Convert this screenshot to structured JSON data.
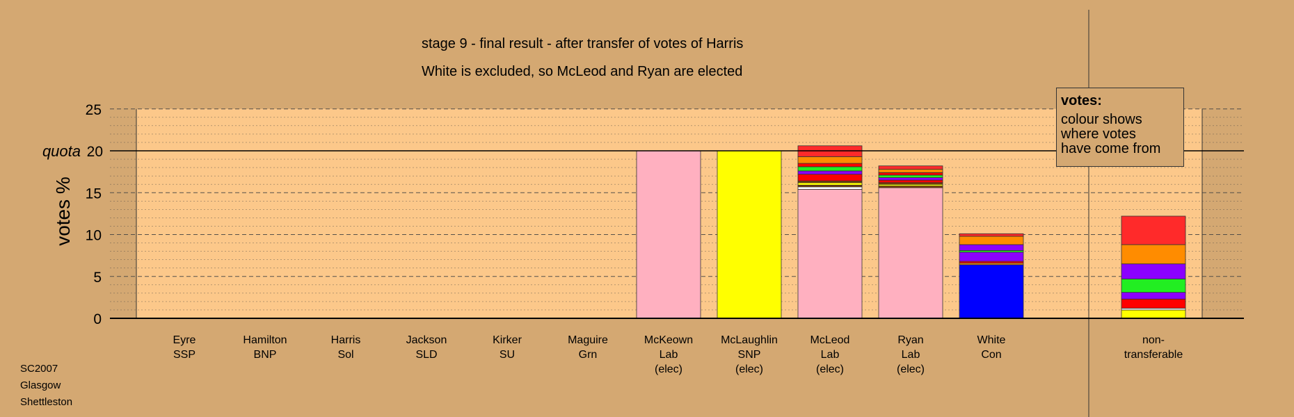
{
  "title_line1": "stage 9 - final result - after transfer of votes of Harris",
  "title_line2": "White is excluded, so McLeod and Ryan are elected",
  "legend": {
    "heading": "votes:",
    "body": "colour shows\nwhere votes\nhave come from"
  },
  "source": [
    "SC2007",
    "Glasgow",
    "Shettleston"
  ],
  "colors": {
    "background": "#d4a872",
    "plot_area": "#fcc88a",
    "SSP": "#ff0000",
    "BNP": "#7f3f00",
    "Sol": "#ff2a2a",
    "SLD": "#ff8c00",
    "SU": "#8b00ff",
    "Grn": "#22ee22",
    "Lab": "#ffb0c0",
    "SNP": "#ffff00",
    "Con": "#0000ff",
    "other": "#ffffff"
  },
  "chart_data": {
    "type": "bar",
    "stacked": true,
    "title": "stage 9 - final result - after transfer of votes of Harris",
    "subtitle": "White is excluded, so McLeod and Ryan are elected",
    "ylabel": "votes %",
    "ylim": [
      0,
      25
    ],
    "yticks": [
      0,
      5,
      10,
      15,
      20,
      25
    ],
    "quota": {
      "label": "quota",
      "value": 20
    },
    "grid": true,
    "legend_position": "top-right",
    "categories": [
      {
        "name": "Eyre",
        "party": "SSP",
        "note": "",
        "segments": []
      },
      {
        "name": "Hamilton",
        "party": "BNP",
        "note": "",
        "segments": []
      },
      {
        "name": "Harris",
        "party": "Sol",
        "note": "",
        "segments": []
      },
      {
        "name": "Jackson",
        "party": "SLD",
        "note": "",
        "segments": []
      },
      {
        "name": "Kirker",
        "party": "SU",
        "note": "",
        "segments": []
      },
      {
        "name": "Maguire",
        "party": "Grn",
        "note": "",
        "segments": []
      },
      {
        "name": "McKeown",
        "party": "Lab",
        "note": "(elec)",
        "segments": [
          {
            "from": "Lab",
            "value": 20.0
          }
        ]
      },
      {
        "name": "McLaughlin",
        "party": "SNP",
        "note": "(elec)",
        "segments": [
          {
            "from": "SNP",
            "value": 20.0
          }
        ]
      },
      {
        "name": "McLeod",
        "party": "Lab",
        "note": "(elec)",
        "segments": [
          {
            "from": "Lab",
            "value": 15.4
          },
          {
            "from": "other",
            "value": 0.3
          },
          {
            "from": "BNP",
            "value": 0.2
          },
          {
            "from": "SNP",
            "value": 0.3
          },
          {
            "from": "BNP",
            "value": 0.2
          },
          {
            "from": "SSP",
            "value": 0.8
          },
          {
            "from": "SU",
            "value": 0.4
          },
          {
            "from": "Grn",
            "value": 0.5
          },
          {
            "from": "SSP",
            "value": 0.4
          },
          {
            "from": "SLD",
            "value": 0.8
          },
          {
            "from": "Sol",
            "value": 1.3
          }
        ]
      },
      {
        "name": "Ryan",
        "party": "Lab",
        "note": "(elec)",
        "segments": [
          {
            "from": "Lab",
            "value": 15.6
          },
          {
            "from": "BNP",
            "value": 0.2
          },
          {
            "from": "SNP",
            "value": 0.2
          },
          {
            "from": "BNP",
            "value": 0.2
          },
          {
            "from": "SSP",
            "value": 0.3
          },
          {
            "from": "SU",
            "value": 0.3
          },
          {
            "from": "Grn",
            "value": 0.3
          },
          {
            "from": "SSP",
            "value": 0.3
          },
          {
            "from": "SLD",
            "value": 0.4
          },
          {
            "from": "Sol",
            "value": 0.4
          }
        ]
      },
      {
        "name": "White",
        "party": "Con",
        "note": "",
        "segments": [
          {
            "from": "Con",
            "value": 6.4
          },
          {
            "from": "SLD",
            "value": 0.2
          },
          {
            "from": "SSP",
            "value": 0.2
          },
          {
            "from": "SU",
            "value": 1.1
          },
          {
            "from": "Grn",
            "value": 0.2
          },
          {
            "from": "SU",
            "value": 0.7
          },
          {
            "from": "SLD",
            "value": 1.0
          },
          {
            "from": "Sol",
            "value": 0.3
          }
        ]
      },
      {
        "name": "non-",
        "party": "transferable",
        "note": "",
        "segments": [
          {
            "from": "SNP",
            "value": 1.0
          },
          {
            "from": "other",
            "value": 0.2
          },
          {
            "from": "SSP",
            "value": 1.1
          },
          {
            "from": "SU",
            "value": 0.8
          },
          {
            "from": "Grn",
            "value": 1.6
          },
          {
            "from": "SU",
            "value": 1.8
          },
          {
            "from": "SLD",
            "value": 2.3
          },
          {
            "from": "Sol",
            "value": 3.4
          }
        ]
      }
    ]
  }
}
